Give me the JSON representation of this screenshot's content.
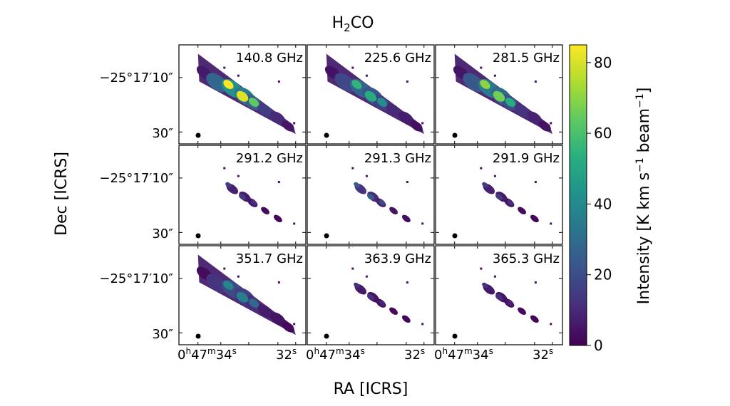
{
  "chart_data": {
    "type": "heatmap",
    "title_parts": {
      "main": "H",
      "sub": "2",
      "rest": "CO"
    },
    "xlabel": "RA [ICRS]",
    "ylabel": "Dec [ICRS]",
    "colorbar": {
      "label_prefix": "Intensity [K km s",
      "label_exp1": "−1",
      "label_mid": " beam",
      "label_exp2": "−1",
      "label_suffix": "]",
      "range": [
        0,
        85
      ],
      "ticks": [
        "0",
        "20",
        "40",
        "60",
        "80"
      ],
      "tick_values": [
        0,
        20,
        40,
        60,
        80
      ],
      "colormap": "viridis",
      "colors": [
        "#440154",
        "#472d7b",
        "#3b528b",
        "#2c728e",
        "#21918c",
        "#28ae80",
        "#5ec962",
        "#addc30",
        "#fde725"
      ]
    },
    "x_ticks": {
      "left": {
        "h": "0",
        "m": "47",
        "s": "34"
      },
      "right": {
        "s": "32"
      },
      "units": {
        "h": "h",
        "m": "m",
        "s": "s"
      }
    },
    "y_ticks": {
      "upper": "−25°17′10″",
      "lower": "30″"
    },
    "panels": [
      {
        "label": "140.8 GHz",
        "peak": 85
      },
      {
        "label": "225.6 GHz",
        "peak": 55
      },
      {
        "label": "281.5 GHz",
        "peak": 70
      },
      {
        "label": "291.2 GHz",
        "peak": 15
      },
      {
        "label": "291.3 GHz",
        "peak": 25
      },
      {
        "label": "291.9 GHz",
        "peak": 15
      },
      {
        "label": "351.7 GHz",
        "peak": 38
      },
      {
        "label": "363.9 GHz",
        "peak": 12
      },
      {
        "label": "365.3 GHz",
        "peak": 12
      }
    ]
  }
}
